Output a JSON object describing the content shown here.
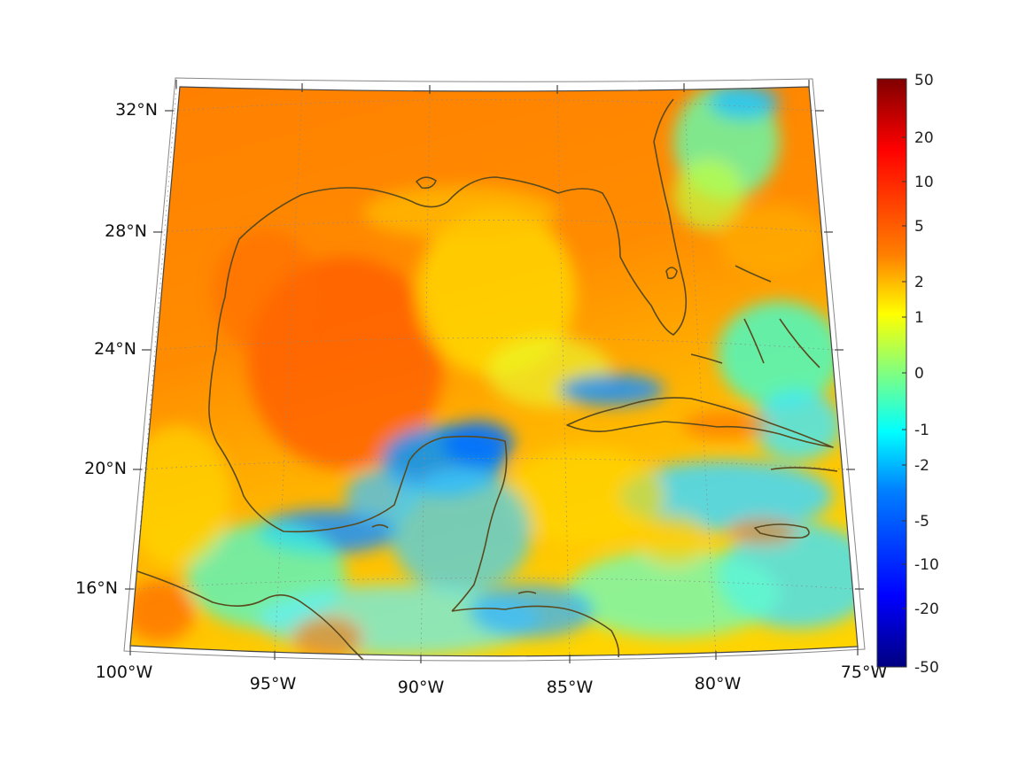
{
  "map": {
    "region": "Gulf of Mexico and Caribbean",
    "projection": "conic",
    "lon_range": [
      -100,
      -75
    ],
    "lat_range": [
      14,
      33
    ],
    "lon_labels": [
      "100°W",
      "95°W",
      "90°W",
      "85°W",
      "80°W",
      "75°W"
    ],
    "lat_labels": [
      "32°N",
      "28°N",
      "24°N",
      "20°N",
      "16°N"
    ],
    "grid": "dotted",
    "coastline_color": "#5a4a1e"
  },
  "colorbar": {
    "colormap": "jet",
    "scale": "symmetric-log",
    "range": [
      -50,
      50
    ],
    "labels": [
      "50",
      "20",
      "10",
      "5",
      "2",
      "1",
      "0",
      "-1",
      "-2",
      "-5",
      "-10",
      "-20",
      "-50"
    ]
  }
}
